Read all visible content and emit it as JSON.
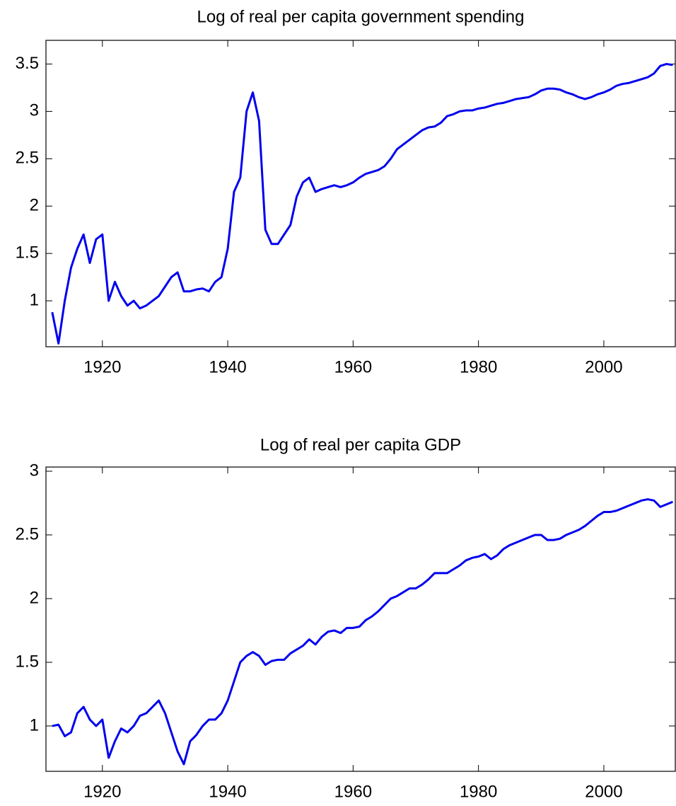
{
  "chart_data": [
    {
      "type": "line",
      "title": "Log of real per capita government spending",
      "x": [
        1912,
        1913,
        1914,
        1915,
        1916,
        1917,
        1918,
        1919,
        1920,
        1921,
        1922,
        1923,
        1924,
        1925,
        1926,
        1927,
        1928,
        1929,
        1930,
        1931,
        1932,
        1933,
        1934,
        1935,
        1936,
        1937,
        1938,
        1939,
        1940,
        1941,
        1942,
        1943,
        1944,
        1945,
        1946,
        1947,
        1948,
        1949,
        1950,
        1951,
        1952,
        1953,
        1954,
        1955,
        1956,
        1957,
        1958,
        1959,
        1960,
        1961,
        1962,
        1963,
        1964,
        1965,
        1966,
        1967,
        1968,
        1969,
        1970,
        1971,
        1972,
        1973,
        1974,
        1975,
        1976,
        1977,
        1978,
        1979,
        1980,
        1981,
        1982,
        1983,
        1984,
        1985,
        1986,
        1987,
        1988,
        1989,
        1990,
        1991,
        1992,
        1993,
        1994,
        1995,
        1996,
        1997,
        1998,
        1999,
        2000,
        2001,
        2002,
        2003,
        2004,
        2005,
        2006,
        2007,
        2008,
        2009,
        2010,
        2011
      ],
      "series": [
        {
          "color": "#0000ee",
          "values": [
            0.88,
            0.55,
            1.0,
            1.35,
            1.55,
            1.7,
            1.4,
            1.65,
            1.7,
            1.0,
            1.2,
            1.05,
            0.95,
            1.0,
            0.92,
            0.95,
            1.0,
            1.05,
            1.15,
            1.25,
            1.3,
            1.1,
            1.1,
            1.12,
            1.13,
            1.1,
            1.2,
            1.25,
            1.55,
            2.15,
            2.3,
            3.0,
            3.2,
            2.9,
            1.75,
            1.6,
            1.6,
            1.7,
            1.8,
            2.1,
            2.25,
            2.3,
            2.15,
            2.18,
            2.2,
            2.22,
            2.2,
            2.22,
            2.25,
            2.3,
            2.34,
            2.36,
            2.38,
            2.42,
            2.5,
            2.6,
            2.65,
            2.7,
            2.75,
            2.8,
            2.83,
            2.84,
            2.88,
            2.95,
            2.97,
            3.0,
            3.01,
            3.01,
            3.03,
            3.04,
            3.06,
            3.08,
            3.09,
            3.11,
            3.13,
            3.14,
            3.15,
            3.18,
            3.22,
            3.24,
            3.24,
            3.23,
            3.2,
            3.18,
            3.15,
            3.13,
            3.15,
            3.18,
            3.2,
            3.23,
            3.27,
            3.29,
            3.3,
            3.32,
            3.34,
            3.36,
            3.4,
            3.48,
            3.5,
            3.49
          ]
        }
      ],
      "xlim": [
        1911,
        2011.4
      ],
      "xticks": [
        1920,
        1940,
        1960,
        1980,
        2000
      ],
      "ylim": [
        0.515,
        3.75
      ],
      "yticks": [
        1,
        1.5,
        2,
        2.5,
        3,
        3.5
      ]
    },
    {
      "type": "line",
      "title": "Log of real per capita GDP",
      "x": [
        1912,
        1913,
        1914,
        1915,
        1916,
        1917,
        1918,
        1919,
        1920,
        1921,
        1922,
        1923,
        1924,
        1925,
        1926,
        1927,
        1928,
        1929,
        1930,
        1931,
        1932,
        1933,
        1934,
        1935,
        1936,
        1937,
        1938,
        1939,
        1940,
        1941,
        1942,
        1943,
        1944,
        1945,
        1946,
        1947,
        1948,
        1949,
        1950,
        1951,
        1952,
        1953,
        1954,
        1955,
        1956,
        1957,
        1958,
        1959,
        1960,
        1961,
        1962,
        1963,
        1964,
        1965,
        1966,
        1967,
        1968,
        1969,
        1970,
        1971,
        1972,
        1973,
        1974,
        1975,
        1976,
        1977,
        1978,
        1979,
        1980,
        1981,
        1982,
        1983,
        1984,
        1985,
        1986,
        1987,
        1988,
        1989,
        1990,
        1991,
        1992,
        1993,
        1994,
        1995,
        1996,
        1997,
        1998,
        1999,
        2000,
        2001,
        2002,
        2003,
        2004,
        2005,
        2006,
        2007,
        2008,
        2009,
        2010,
        2011
      ],
      "series": [
        {
          "color": "#0000ee",
          "values": [
            1.0,
            1.01,
            0.92,
            0.95,
            1.1,
            1.15,
            1.05,
            1.0,
            1.05,
            0.75,
            0.88,
            0.98,
            0.95,
            1.0,
            1.08,
            1.1,
            1.15,
            1.2,
            1.1,
            0.95,
            0.8,
            0.7,
            0.88,
            0.93,
            1.0,
            1.05,
            1.05,
            1.1,
            1.2,
            1.35,
            1.5,
            1.55,
            1.58,
            1.55,
            1.48,
            1.51,
            1.52,
            1.52,
            1.57,
            1.6,
            1.63,
            1.68,
            1.64,
            1.7,
            1.74,
            1.75,
            1.73,
            1.77,
            1.77,
            1.78,
            1.83,
            1.86,
            1.9,
            1.95,
            2.0,
            2.02,
            2.05,
            2.08,
            2.08,
            2.11,
            2.15,
            2.2,
            2.2,
            2.2,
            2.23,
            2.26,
            2.3,
            2.32,
            2.33,
            2.35,
            2.31,
            2.34,
            2.39,
            2.42,
            2.44,
            2.46,
            2.48,
            2.5,
            2.5,
            2.46,
            2.46,
            2.47,
            2.5,
            2.52,
            2.54,
            2.57,
            2.61,
            2.65,
            2.68,
            2.68,
            2.69,
            2.71,
            2.73,
            2.75,
            2.77,
            2.78,
            2.77,
            2.72,
            2.74,
            2.76
          ]
        }
      ],
      "xlim": [
        1911,
        2011.4
      ],
      "xticks": [
        1920,
        1940,
        1960,
        1980,
        2000
      ],
      "ylim": [
        0.644,
        3.033
      ],
      "yticks": [
        1,
        1.5,
        2,
        2.5,
        3
      ]
    }
  ]
}
